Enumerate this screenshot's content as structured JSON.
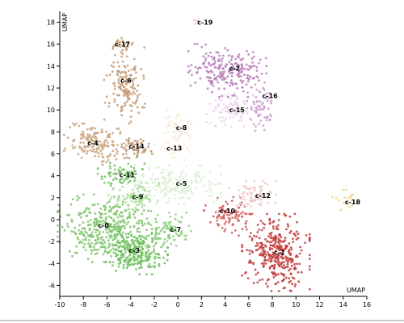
{
  "chart_data": {
    "type": "scatter",
    "xlabel": "UMAP",
    "ylabel": "UMAP",
    "xlim": [
      -10,
      16
    ],
    "ylim": [
      -7,
      19
    ],
    "xticks": [
      "-10",
      "-8",
      "-6",
      "-4",
      "-2",
      "0",
      "2",
      "4",
      "6",
      "8",
      "10",
      "12",
      "14",
      "16"
    ],
    "yticks": [
      "-6",
      "-4",
      "-2",
      "0",
      "2",
      "4",
      "6",
      "8",
      "10",
      "12",
      "14",
      "16",
      "18"
    ],
    "grid": false,
    "legend": "none",
    "clusters": [
      {
        "name": "c-0",
        "color": "#7cc46a",
        "label": [
          -6.3,
          -0.5
        ],
        "center": [
          -6.0,
          -0.8
        ],
        "spread": [
          1.9,
          1.4
        ],
        "n": 400
      },
      {
        "name": "c-1",
        "color": "#c23b3b",
        "label": [
          8.6,
          -3.0
        ],
        "center": [
          8.3,
          -3.0
        ],
        "spread": [
          1.3,
          1.6
        ],
        "n": 350
      },
      {
        "name": "c-2",
        "color": "#b77cb7",
        "label": [
          4.8,
          13.8
        ],
        "center": [
          4.2,
          13.6
        ],
        "spread": [
          1.5,
          1.1
        ],
        "n": 220
      },
      {
        "name": "c-3",
        "color": "#6bbf5c",
        "label": [
          -3.7,
          -2.8
        ],
        "center": [
          -3.5,
          -3.0
        ],
        "spread": [
          1.2,
          0.9
        ],
        "n": 230
      },
      {
        "name": "c-4",
        "color": "#c9a37b",
        "label": [
          -7.2,
          7.0
        ],
        "center": [
          -7.0,
          7.0
        ],
        "spread": [
          1.2,
          0.8
        ],
        "n": 160
      },
      {
        "name": "c-5",
        "color": "#d9eed4",
        "label": [
          0.3,
          3.3
        ],
        "center": [
          -0.3,
          3.2
        ],
        "spread": [
          1.8,
          0.8
        ],
        "n": 200
      },
      {
        "name": "c-6",
        "color": "#c49a74",
        "label": [
          -4.4,
          12.7
        ],
        "center": [
          -4.5,
          12.2
        ],
        "spread": [
          0.8,
          1.6
        ],
        "n": 150
      },
      {
        "name": "c-7",
        "color": "#8ed07e",
        "label": [
          -0.2,
          -0.9
        ],
        "center": [
          -0.5,
          -0.9
        ],
        "spread": [
          0.8,
          0.7
        ],
        "n": 80
      },
      {
        "name": "c-8",
        "color": "#f5e6d1",
        "label": [
          0.3,
          8.4
        ],
        "center": [
          0.0,
          8.6
        ],
        "spread": [
          0.6,
          0.7
        ],
        "n": 45
      },
      {
        "name": "c-9",
        "color": "#a9dd9b",
        "label": [
          -3.4,
          2.1
        ],
        "center": [
          -3.8,
          2.0
        ],
        "spread": [
          1.0,
          0.6
        ],
        "n": 90
      },
      {
        "name": "c-10",
        "color": "#d06060",
        "label": [
          4.2,
          0.8
        ],
        "center": [
          4.2,
          0.3
        ],
        "spread": [
          0.9,
          0.8
        ],
        "n": 90
      },
      {
        "name": "c-11",
        "color": "#74c064",
        "label": [
          -4.3,
          4.1
        ],
        "center": [
          -4.8,
          4.2
        ],
        "spread": [
          0.9,
          0.5
        ],
        "n": 70
      },
      {
        "name": "c-12",
        "color": "#f2c7c7",
        "label": [
          7.2,
          2.2
        ],
        "center": [
          6.3,
          2.2
        ],
        "spread": [
          0.9,
          0.6
        ],
        "n": 70
      },
      {
        "name": "c-13",
        "color": "#fbeedf",
        "label": [
          -0.3,
          6.5
        ],
        "center": [
          -0.6,
          6.4
        ],
        "spread": [
          0.8,
          0.6
        ],
        "n": 45
      },
      {
        "name": "c-14",
        "color": "#b99470",
        "label": [
          -3.5,
          6.7
        ],
        "center": [
          -3.5,
          6.7
        ],
        "spread": [
          0.6,
          0.5
        ],
        "n": 50
      },
      {
        "name": "c-15",
        "color": "#ead5ea",
        "label": [
          5.0,
          10.0
        ],
        "center": [
          4.4,
          10.0
        ],
        "spread": [
          0.9,
          0.7
        ],
        "n": 90
      },
      {
        "name": "c-16",
        "color": "#cc99cc",
        "label": [
          7.8,
          11.3
        ],
        "center": [
          7.0,
          10.3
        ],
        "spread": [
          0.6,
          1.0
        ],
        "n": 60
      },
      {
        "name": "c-17",
        "color": "#c69b74",
        "label": [
          -4.7,
          16.0
        ],
        "center": [
          -4.7,
          15.9
        ],
        "spread": [
          0.4,
          0.3
        ],
        "n": 25
      },
      {
        "name": "c-18",
        "color": "#f1d58a",
        "label": [
          14.8,
          1.6
        ],
        "center": [
          14.2,
          1.8
        ],
        "spread": [
          0.5,
          0.6
        ],
        "n": 18
      },
      {
        "name": "c-19",
        "color": "#e8bcbc",
        "label": [
          2.3,
          18.0
        ],
        "center": [
          1.6,
          18.1
        ],
        "spread": [
          0.15,
          0.12
        ],
        "n": 5
      }
    ]
  }
}
